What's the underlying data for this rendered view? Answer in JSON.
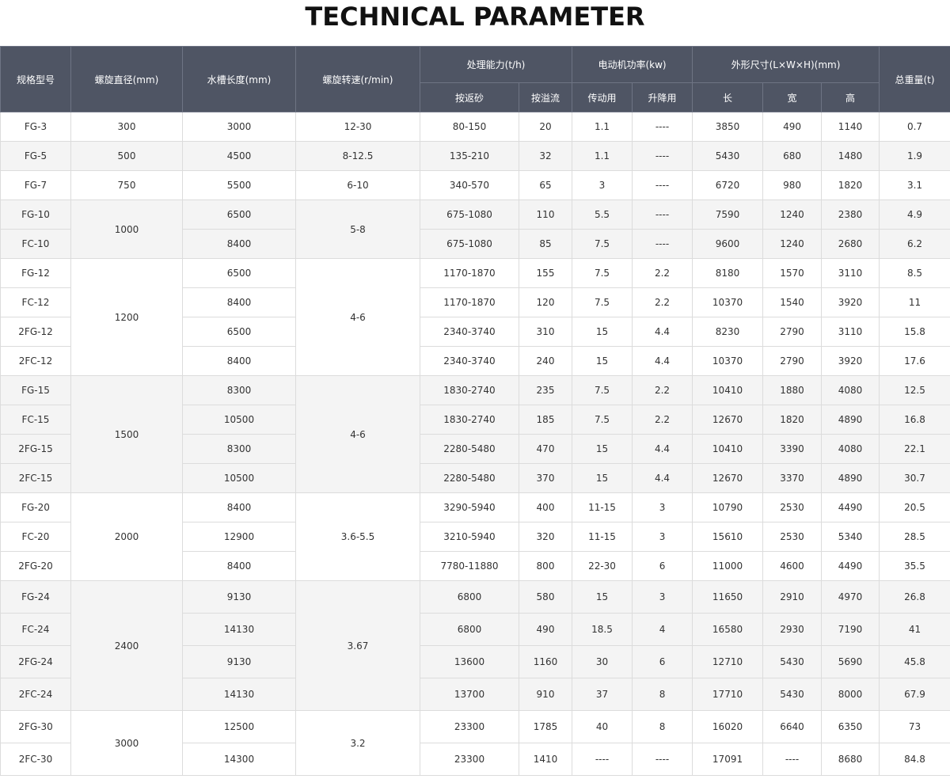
{
  "title": "TECHNICAL PARAMETER",
  "headers": {
    "model": "规格型号",
    "spiral_diameter": "螺旋直径(mm)",
    "tank_length": "水槽长度(mm)",
    "spiral_speed": "螺旋转速(r/min)",
    "capacity": "处理能力(t/h)",
    "capacity_sand": "按返砂",
    "capacity_overflow": "按溢流",
    "motor_power": "电动机功率(kw)",
    "motor_drive": "传动用",
    "motor_lift": "升降用",
    "dimensions": "外形尺寸(L×W×H)(mm)",
    "dim_l": "长",
    "dim_w": "宽",
    "dim_h": "高",
    "weight": "总重量(t)"
  },
  "rows": [
    [
      "FG-3",
      "300",
      "3000",
      "12-30",
      "80-150",
      "20",
      "1.1",
      "----",
      "3850",
      "490",
      "1140",
      "0.7"
    ],
    [
      "FG-5",
      "500",
      "4500",
      "8-12.5",
      "135-210",
      "32",
      "1.1",
      "----",
      "5430",
      "680",
      "1480",
      "1.9"
    ],
    [
      "FG-7",
      "750",
      "5500",
      "6-10",
      "340-570",
      "65",
      "3",
      "----",
      "6720",
      "980",
      "1820",
      "3.1"
    ],
    [
      "FG-10",
      "1000",
      "6500",
      "5-8",
      "675-1080",
      "110",
      "5.5",
      "----",
      "7590",
      "1240",
      "2380",
      "4.9"
    ],
    [
      "FC-10",
      "",
      "8400",
      "",
      "675-1080",
      "85",
      "7.5",
      "----",
      "9600",
      "1240",
      "2680",
      "6.2"
    ],
    [
      "FG-12",
      "1200",
      "6500",
      "4-6",
      "1170-1870",
      "155",
      "7.5",
      "2.2",
      "8180",
      "1570",
      "3110",
      "8.5"
    ],
    [
      "FC-12",
      "",
      "8400",
      "",
      "1170-1870",
      "120",
      "7.5",
      "2.2",
      "10370",
      "1540",
      "3920",
      "11"
    ],
    [
      "2FG-12",
      "",
      "6500",
      "",
      "2340-3740",
      "310",
      "15",
      "4.4",
      "8230",
      "2790",
      "3110",
      "15.8"
    ],
    [
      "2FC-12",
      "",
      "8400",
      "",
      "2340-3740",
      "240",
      "15",
      "4.4",
      "10370",
      "2790",
      "3920",
      "17.6"
    ],
    [
      "FG-15",
      "1500",
      "8300",
      "4-6",
      "1830-2740",
      "235",
      "7.5",
      "2.2",
      "10410",
      "1880",
      "4080",
      "12.5"
    ],
    [
      "FC-15",
      "",
      "10500",
      "",
      "1830-2740",
      "185",
      "7.5",
      "2.2",
      "12670",
      "1820",
      "4890",
      "16.8"
    ],
    [
      "2FG-15",
      "",
      "8300",
      "",
      "2280-5480",
      "470",
      "15",
      "4.4",
      "10410",
      "3390",
      "4080",
      "22.1"
    ],
    [
      "2FC-15",
      "",
      "10500",
      "",
      "2280-5480",
      "370",
      "15",
      "4.4",
      "12670",
      "3370",
      "4890",
      "30.7"
    ],
    [
      "FG-20",
      "2000",
      "8400",
      "3.6-5.5",
      "3290-5940",
      "400",
      "11-15",
      "3",
      "10790",
      "2530",
      "4490",
      "20.5"
    ],
    [
      "FC-20",
      "",
      "12900",
      "",
      "3210-5940",
      "320",
      "11-15",
      "3",
      "15610",
      "2530",
      "5340",
      "28.5"
    ],
    [
      "2FG-20",
      "",
      "8400",
      "",
      "7780-11880",
      "800",
      "22-30",
      "6",
      "11000",
      "4600",
      "4490",
      "35.5"
    ],
    [
      "FG-24",
      "2400",
      "9130",
      "3.67",
      "6800",
      "580",
      "15",
      "3",
      "11650",
      "2910",
      "4970",
      "26.8"
    ],
    [
      "FC-24",
      "",
      "14130",
      "",
      "6800",
      "490",
      "18.5",
      "4",
      "16580",
      "2930",
      "7190",
      "41"
    ],
    [
      "2FG-24",
      "",
      "9130",
      "",
      "13600",
      "1160",
      "30",
      "6",
      "12710",
      "5430",
      "5690",
      "45.8"
    ],
    [
      "2FC-24",
      "",
      "14130",
      "",
      "13700",
      "910",
      "37",
      "8",
      "17710",
      "5430",
      "8000",
      "67.9"
    ],
    [
      "2FG-30",
      "3000",
      "12500",
      "3.2",
      "23300",
      "1785",
      "40",
      "8",
      "16020",
      "6640",
      "6350",
      "73"
    ],
    [
      "2FC-30",
      "",
      "14300",
      "",
      "23300",
      "1410",
      "----",
      "----",
      "17091",
      "----",
      "8680",
      "84.8"
    ]
  ]
}
